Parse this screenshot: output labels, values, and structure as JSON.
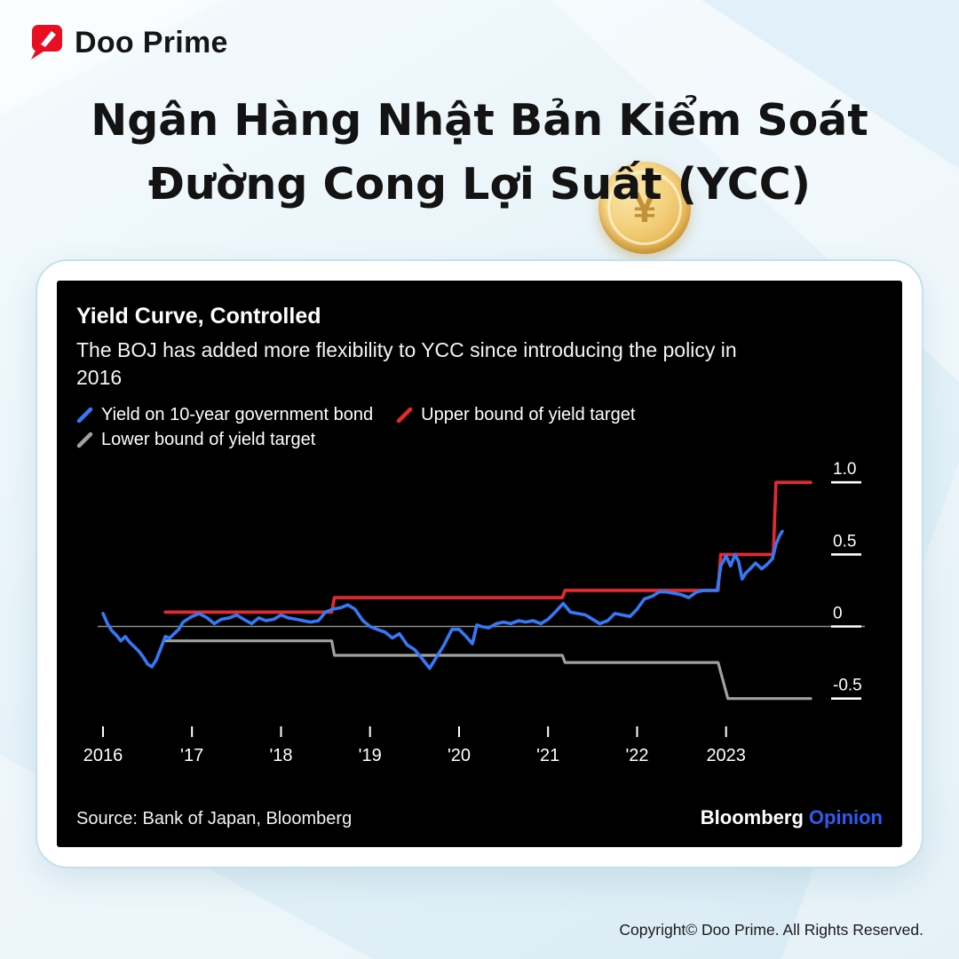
{
  "logo": {
    "brand": "Doo Prime"
  },
  "title": {
    "line1": "Ngân Hàng Nhật Bản Kiểm Soát",
    "line2": "Đường Cong Lợi Suất (YCC)"
  },
  "coin": {
    "symbol": "¥"
  },
  "chart": {
    "title": "Yield Curve, Controlled",
    "subtitle_line1": "The BOJ has added more flexibility to YCC since introducing the policy in",
    "subtitle_line2": "2016",
    "legend": [
      {
        "label": "Yield on 10-year government bond",
        "color": "#3579f6"
      },
      {
        "label": "Upper bound of yield target",
        "color": "#e8282f"
      },
      {
        "label": "Lower bound of yield target",
        "color": "#a0a0a0"
      }
    ],
    "source": "Source: Bank of Japan, Bloomberg",
    "brand": {
      "bloomberg": "Bloomberg",
      "opinion": "Opinion"
    }
  },
  "footer": {
    "copyright": "Copyright© Doo Prime. All Rights Reserved."
  },
  "colors": {
    "panel_bg": "#000000",
    "zero_line": "#8f8f8f",
    "axis_text": "#ffffff",
    "logo_red": "#e80f22",
    "opinion_blue": "#2c5cf2",
    "card_border": "#c3e1ef",
    "coin_gold": "#f3cf7a"
  },
  "chart_data": {
    "type": "line",
    "title": "Yield Curve, Controlled",
    "subtitle": "The BOJ has added more flexibility to YCC since introducing the policy in 2016",
    "x_domain": [
      2016,
      2024.1
    ],
    "y_domain": [
      -0.65,
      1.1
    ],
    "unit": "percent",
    "zero_line": true,
    "grid": "off",
    "legend_position": "top-left",
    "background": "#000000",
    "x_ticks": [
      {
        "x": 2016,
        "label": "2016"
      },
      {
        "x": 2017,
        "label": "'17"
      },
      {
        "x": 2018,
        "label": "'18"
      },
      {
        "x": 2019,
        "label": "'19"
      },
      {
        "x": 2020,
        "label": "'20"
      },
      {
        "x": 2021,
        "label": "'21"
      },
      {
        "x": 2022,
        "label": "'22"
      },
      {
        "x": 2023,
        "label": "2023"
      }
    ],
    "y_ticks": [
      {
        "y": 1.0,
        "label": "1.0"
      },
      {
        "y": 0.5,
        "label": "0.5"
      },
      {
        "y": 0,
        "label": "0"
      },
      {
        "y": -0.5,
        "label": "-0.5"
      }
    ],
    "series": [
      {
        "name": "Yield on 10-year government bond",
        "color": "#3579f6",
        "width": 3.6,
        "points": [
          [
            2016.0,
            0.09
          ],
          [
            2016.05,
            0.02
          ],
          [
            2016.1,
            -0.03
          ],
          [
            2016.15,
            -0.06
          ],
          [
            2016.2,
            -0.1
          ],
          [
            2016.25,
            -0.07
          ],
          [
            2016.3,
            -0.11
          ],
          [
            2016.35,
            -0.14
          ],
          [
            2016.4,
            -0.17
          ],
          [
            2016.45,
            -0.21
          ],
          [
            2016.5,
            -0.26
          ],
          [
            2016.55,
            -0.28
          ],
          [
            2016.6,
            -0.23
          ],
          [
            2016.65,
            -0.15
          ],
          [
            2016.7,
            -0.07
          ],
          [
            2016.75,
            -0.08
          ],
          [
            2016.8,
            -0.05
          ],
          [
            2016.85,
            -0.02
          ],
          [
            2016.9,
            0.03
          ],
          [
            2016.95,
            0.05
          ],
          [
            2017.0,
            0.07
          ],
          [
            2017.08,
            0.09
          ],
          [
            2017.17,
            0.06
          ],
          [
            2017.25,
            0.02
          ],
          [
            2017.33,
            0.05
          ],
          [
            2017.42,
            0.06
          ],
          [
            2017.5,
            0.08
          ],
          [
            2017.58,
            0.05
          ],
          [
            2017.67,
            0.02
          ],
          [
            2017.75,
            0.06
          ],
          [
            2017.83,
            0.04
          ],
          [
            2017.92,
            0.05
          ],
          [
            2018.0,
            0.08
          ],
          [
            2018.08,
            0.06
          ],
          [
            2018.17,
            0.05
          ],
          [
            2018.25,
            0.04
          ],
          [
            2018.33,
            0.03
          ],
          [
            2018.42,
            0.04
          ],
          [
            2018.5,
            0.1
          ],
          [
            2018.58,
            0.12
          ],
          [
            2018.67,
            0.13
          ],
          [
            2018.75,
            0.15
          ],
          [
            2018.83,
            0.12
          ],
          [
            2018.92,
            0.04
          ],
          [
            2019.0,
            0.0
          ],
          [
            2019.08,
            -0.02
          ],
          [
            2019.17,
            -0.04
          ],
          [
            2019.25,
            -0.08
          ],
          [
            2019.33,
            -0.05
          ],
          [
            2019.42,
            -0.13
          ],
          [
            2019.5,
            -0.16
          ],
          [
            2019.58,
            -0.22
          ],
          [
            2019.67,
            -0.29
          ],
          [
            2019.75,
            -0.21
          ],
          [
            2019.83,
            -0.13
          ],
          [
            2019.92,
            -0.02
          ],
          [
            2020.0,
            -0.02
          ],
          [
            2020.08,
            -0.07
          ],
          [
            2020.15,
            -0.12
          ],
          [
            2020.2,
            0.01
          ],
          [
            2020.25,
            0.0
          ],
          [
            2020.33,
            -0.01
          ],
          [
            2020.42,
            0.02
          ],
          [
            2020.5,
            0.03
          ],
          [
            2020.58,
            0.02
          ],
          [
            2020.67,
            0.04
          ],
          [
            2020.75,
            0.03
          ],
          [
            2020.83,
            0.04
          ],
          [
            2020.92,
            0.02
          ],
          [
            2021.0,
            0.05
          ],
          [
            2021.08,
            0.1
          ],
          [
            2021.17,
            0.16
          ],
          [
            2021.25,
            0.1
          ],
          [
            2021.33,
            0.09
          ],
          [
            2021.42,
            0.08
          ],
          [
            2021.5,
            0.05
          ],
          [
            2021.58,
            0.02
          ],
          [
            2021.67,
            0.04
          ],
          [
            2021.75,
            0.09
          ],
          [
            2021.83,
            0.08
          ],
          [
            2021.92,
            0.07
          ],
          [
            2022.0,
            0.12
          ],
          [
            2022.08,
            0.19
          ],
          [
            2022.17,
            0.21
          ],
          [
            2022.25,
            0.24
          ],
          [
            2022.33,
            0.24
          ],
          [
            2022.42,
            0.23
          ],
          [
            2022.5,
            0.22
          ],
          [
            2022.58,
            0.2
          ],
          [
            2022.67,
            0.24
          ],
          [
            2022.75,
            0.25
          ],
          [
            2022.83,
            0.25
          ],
          [
            2022.9,
            0.25
          ],
          [
            2022.94,
            0.42
          ],
          [
            2023.0,
            0.49
          ],
          [
            2023.05,
            0.42
          ],
          [
            2023.1,
            0.5
          ],
          [
            2023.14,
            0.45
          ],
          [
            2023.18,
            0.33
          ],
          [
            2023.22,
            0.37
          ],
          [
            2023.27,
            0.4
          ],
          [
            2023.33,
            0.44
          ],
          [
            2023.4,
            0.4
          ],
          [
            2023.46,
            0.43
          ],
          [
            2023.52,
            0.47
          ],
          [
            2023.56,
            0.57
          ],
          [
            2023.6,
            0.63
          ],
          [
            2023.63,
            0.66
          ]
        ]
      },
      {
        "name": "Upper bound of yield target",
        "color": "#e8282f",
        "width": 3.6,
        "points": [
          [
            2016.7,
            0.1
          ],
          [
            2018.57,
            0.1
          ],
          [
            2018.6,
            0.2
          ],
          [
            2021.16,
            0.2
          ],
          [
            2021.19,
            0.25
          ],
          [
            2022.91,
            0.25
          ],
          [
            2022.94,
            0.5
          ],
          [
            2023.53,
            0.5
          ],
          [
            2023.56,
            1.0
          ],
          [
            2023.95,
            1.0
          ]
        ]
      },
      {
        "name": "Lower bound of yield target",
        "color": "#a0a0a0",
        "width": 3.2,
        "points": [
          [
            2016.7,
            -0.1
          ],
          [
            2018.57,
            -0.1
          ],
          [
            2018.6,
            -0.2
          ],
          [
            2021.16,
            -0.2
          ],
          [
            2021.19,
            -0.25
          ],
          [
            2022.91,
            -0.25
          ],
          [
            2023.02,
            -0.5
          ],
          [
            2023.95,
            -0.5
          ]
        ]
      }
    ]
  }
}
